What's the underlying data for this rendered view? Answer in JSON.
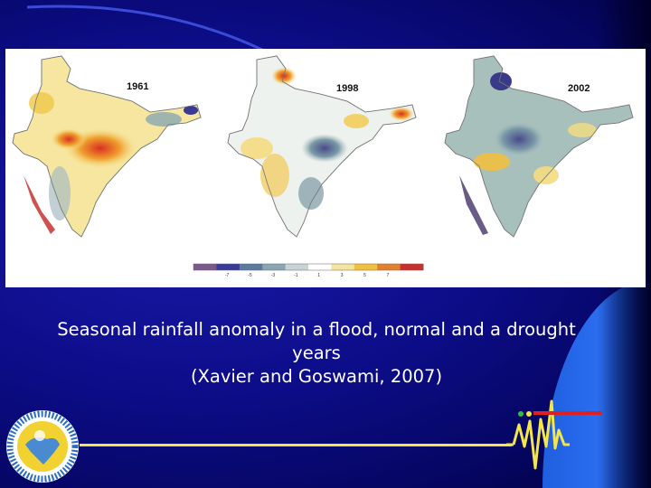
{
  "slide": {
    "caption_line1": "Seasonal rainfall anomaly in a flood, normal and a drought",
    "caption_line2": "years",
    "caption_line3": "(Xavier and Goswami, 2007)"
  },
  "maps": [
    {
      "year": "1961"
    },
    {
      "year": "1998"
    },
    {
      "year": "2002"
    }
  ],
  "scale": {
    "ticks": [
      "-7",
      "-5",
      "-3",
      "-1",
      "1",
      "3",
      "5",
      "7"
    ],
    "colors": [
      "#7a5a8a",
      "#3a3a9a",
      "#5a7aa0",
      "#8aa6b0",
      "#c8d4d4",
      "#ffffff",
      "#f4e4a0",
      "#f0c040",
      "#e08030",
      "#c83030"
    ]
  },
  "colors": {
    "background": "#0d0d8a",
    "accent_band": "#2b6ef0",
    "footer_line": "#f2e64a",
    "seismo_line": "#f2e64a",
    "seismo_bar": "#e02020"
  },
  "logo": {
    "icon": "institute-logo-icon"
  }
}
